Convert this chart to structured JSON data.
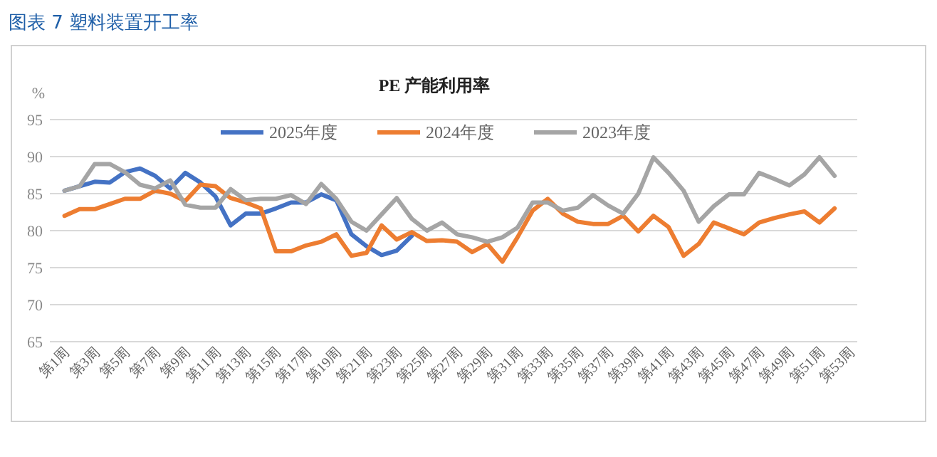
{
  "chart_data": {
    "type": "line",
    "title": "PE 产能利用率",
    "ylabel": "%",
    "annotations": [
      "图表 7 塑料装置开工率"
    ],
    "categories": [
      "第1周",
      null,
      "第3周",
      null,
      "第5周",
      null,
      "第7周",
      null,
      "第9周",
      null,
      "第11周",
      null,
      "第13周",
      null,
      "第15周",
      null,
      "第17周",
      null,
      "第19周",
      null,
      "第21周",
      null,
      "第23周",
      null,
      "第25周",
      null,
      "第27周",
      null,
      "第29周",
      null,
      "第31周",
      null,
      "第33周",
      null,
      "第35周",
      null,
      "第37周",
      null,
      "第39周",
      null,
      "第41周",
      null,
      "第43周",
      null,
      "第45周",
      null,
      "第47周",
      null,
      "第49周",
      null,
      "第51周",
      null,
      "第53周"
    ],
    "series": [
      {
        "name": "2025年度",
        "color": "#4472c4",
        "values": [
          85.4,
          86.0,
          86.6,
          86.5,
          87.9,
          88.4,
          87.4,
          85.7,
          87.8,
          86.5,
          84.6,
          80.7,
          82.3,
          82.3,
          83.0,
          83.8,
          83.8,
          84.9,
          84.1,
          79.5,
          77.9,
          76.7,
          77.3,
          79.3,
          null,
          null,
          null,
          null,
          null,
          null,
          null,
          null,
          null,
          null,
          null,
          null,
          null,
          null,
          null,
          null,
          null,
          null,
          null,
          null,
          null,
          null,
          null,
          null,
          null,
          null,
          null,
          null,
          null
        ]
      },
      {
        "name": "2024年度",
        "color": "#ed7d31",
        "values": [
          82.0,
          82.9,
          82.9,
          83.6,
          84.3,
          84.3,
          85.4,
          85.0,
          84.0,
          86.2,
          86.0,
          84.4,
          83.8,
          83.0,
          77.2,
          77.2,
          78.0,
          78.5,
          79.5,
          76.6,
          77.0,
          80.7,
          78.8,
          79.8,
          78.6,
          78.7,
          78.5,
          77.1,
          78.2,
          75.8,
          79.1,
          82.7,
          84.3,
          82.3,
          81.2,
          80.9,
          80.9,
          82.0,
          79.9,
          82.0,
          80.5,
          76.6,
          78.2,
          81.1,
          80.3,
          79.5,
          81.1,
          81.7,
          82.2,
          82.6,
          81.1,
          83.0,
          null
        ]
      },
      {
        "name": "2023年度",
        "color": "#a5a5a5",
        "values": [
          85.4,
          86.0,
          89.0,
          89.0,
          87.9,
          86.2,
          85.7,
          86.8,
          83.5,
          83.1,
          83.1,
          85.6,
          84.1,
          84.3,
          84.3,
          84.8,
          83.6,
          86.3,
          84.3,
          81.2,
          80.0,
          82.2,
          84.4,
          81.6,
          80.0,
          81.1,
          79.5,
          79.1,
          78.5,
          79.1,
          80.4,
          83.8,
          83.8,
          82.7,
          83.1,
          84.8,
          83.4,
          82.3,
          85.0,
          89.9,
          87.8,
          85.4,
          81.2,
          83.3,
          84.9,
          84.9,
          87.8,
          87.0,
          86.1,
          87.6,
          89.9,
          87.4,
          null
        ]
      }
    ],
    "ylim": [
      65,
      95
    ],
    "yticks": [
      65,
      70,
      75,
      80,
      85,
      90,
      95
    ],
    "grid": "y",
    "legend": "top",
    "marker": "none",
    "line_style": "solid"
  }
}
